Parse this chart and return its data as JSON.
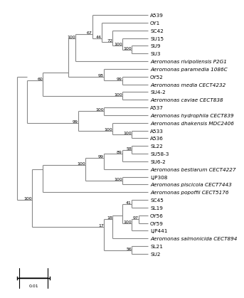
{
  "scale_bar_label": "0.01",
  "background_color": "#ffffff",
  "line_color": "#888888",
  "text_color": "#000000",
  "font_size": 5.2,
  "bootstrap_font_size": 4.5,
  "leaf_names": [
    "A539",
    "OY1",
    "SC42",
    "SU15",
    "SU9",
    "SU3",
    "Aeromonas rivipollensis P2G1",
    "Aeromonas paramedia 1086C",
    "OY52",
    "Aeromonas media CECT4232",
    "SU4-2",
    "Aeromonas caviae CECT838",
    "A537",
    "Aeromonas hydrophila CECT839",
    "Aeromonas dhakensis MDC2406",
    "A533",
    "A536",
    "SL22",
    "SU58-3",
    "SU6-2",
    "Aeromonas bestiarum CECT4227",
    "LJP308",
    "Aeromonas piscicola CECT7443",
    "Aeromonas popoffii CECT5176",
    "SC45",
    "SL19",
    "OY56",
    "OY59",
    "LJP441",
    "Aeromonas salmonicida CECT894",
    "SL21",
    "SU2"
  ],
  "italic_prefix": "Aeromonas"
}
